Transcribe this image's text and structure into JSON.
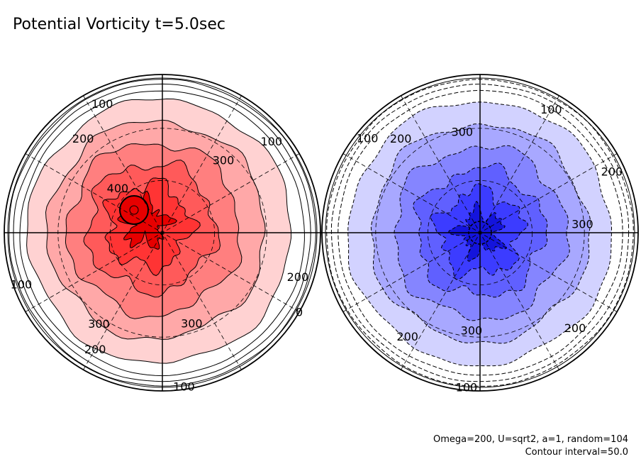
{
  "title": "Potential Vorticity t=5.0sec",
  "notes": {
    "params": "Omega=200, U=sqrt2, a=1, random=104",
    "contour_interval": "Contour interval=50.0"
  },
  "chart_data": {
    "type": "polar-contour",
    "contour_interval": 50.0,
    "panels": [
      {
        "name": "north",
        "fill_colors": [
          "#ffffff",
          "#ffd2d2",
          "#ffa8a8",
          "#ff7f7f",
          "#ff5a5a",
          "#ff3434",
          "#e60000"
        ],
        "levels": [
          0,
          50,
          100,
          150,
          200,
          250,
          300,
          350,
          400
        ],
        "labels": [
          {
            "text": "100",
            "angle": -115,
            "r": 0.9
          },
          {
            "text": "200",
            "angle": -130,
            "r": 0.78
          },
          {
            "text": "100",
            "angle": -40,
            "r": 0.9
          },
          {
            "text": "300",
            "angle": -50,
            "r": 0.6
          },
          {
            "text": "400",
            "angle": -135,
            "r": 0.4
          },
          {
            "text": "200",
            "angle": 18,
            "r": 0.9
          },
          {
            "text": "0",
            "angle": 30,
            "r": 1.0
          },
          {
            "text": "100",
            "angle": 160,
            "r": 0.95
          },
          {
            "text": "300",
            "angle": 125,
            "r": 0.7
          },
          {
            "text": "200",
            "angle": 120,
            "r": 0.85
          },
          {
            "text": "300",
            "angle": 72,
            "r": 0.6
          },
          {
            "text": "100",
            "angle": 82,
            "r": 0.98
          }
        ]
      },
      {
        "name": "south",
        "fill_colors": [
          "#ffffff",
          "#d2d2ff",
          "#a8a8ff",
          "#8585ff",
          "#6060ff",
          "#3c3cff",
          "#1414dc"
        ],
        "levels": [
          0,
          -50,
          -100,
          -150,
          -200,
          -250,
          -300,
          -350,
          -400
        ],
        "labels": [
          {
            "text": "100",
            "angle": -60,
            "r": 0.9
          },
          {
            "text": "100",
            "angle": -140,
            "r": 0.93
          },
          {
            "text": "200",
            "angle": -130,
            "r": 0.78
          },
          {
            "text": "300",
            "angle": -100,
            "r": 0.65
          },
          {
            "text": "200",
            "angle": -25,
            "r": 0.92
          },
          {
            "text": "300",
            "angle": -5,
            "r": 0.65
          },
          {
            "text": "200",
            "angle": 125,
            "r": 0.8
          },
          {
            "text": "300",
            "angle": 95,
            "r": 0.62
          },
          {
            "text": "200",
            "angle": 45,
            "r": 0.85
          },
          {
            "text": "100",
            "angle": 95,
            "r": 0.98
          }
        ]
      }
    ]
  }
}
